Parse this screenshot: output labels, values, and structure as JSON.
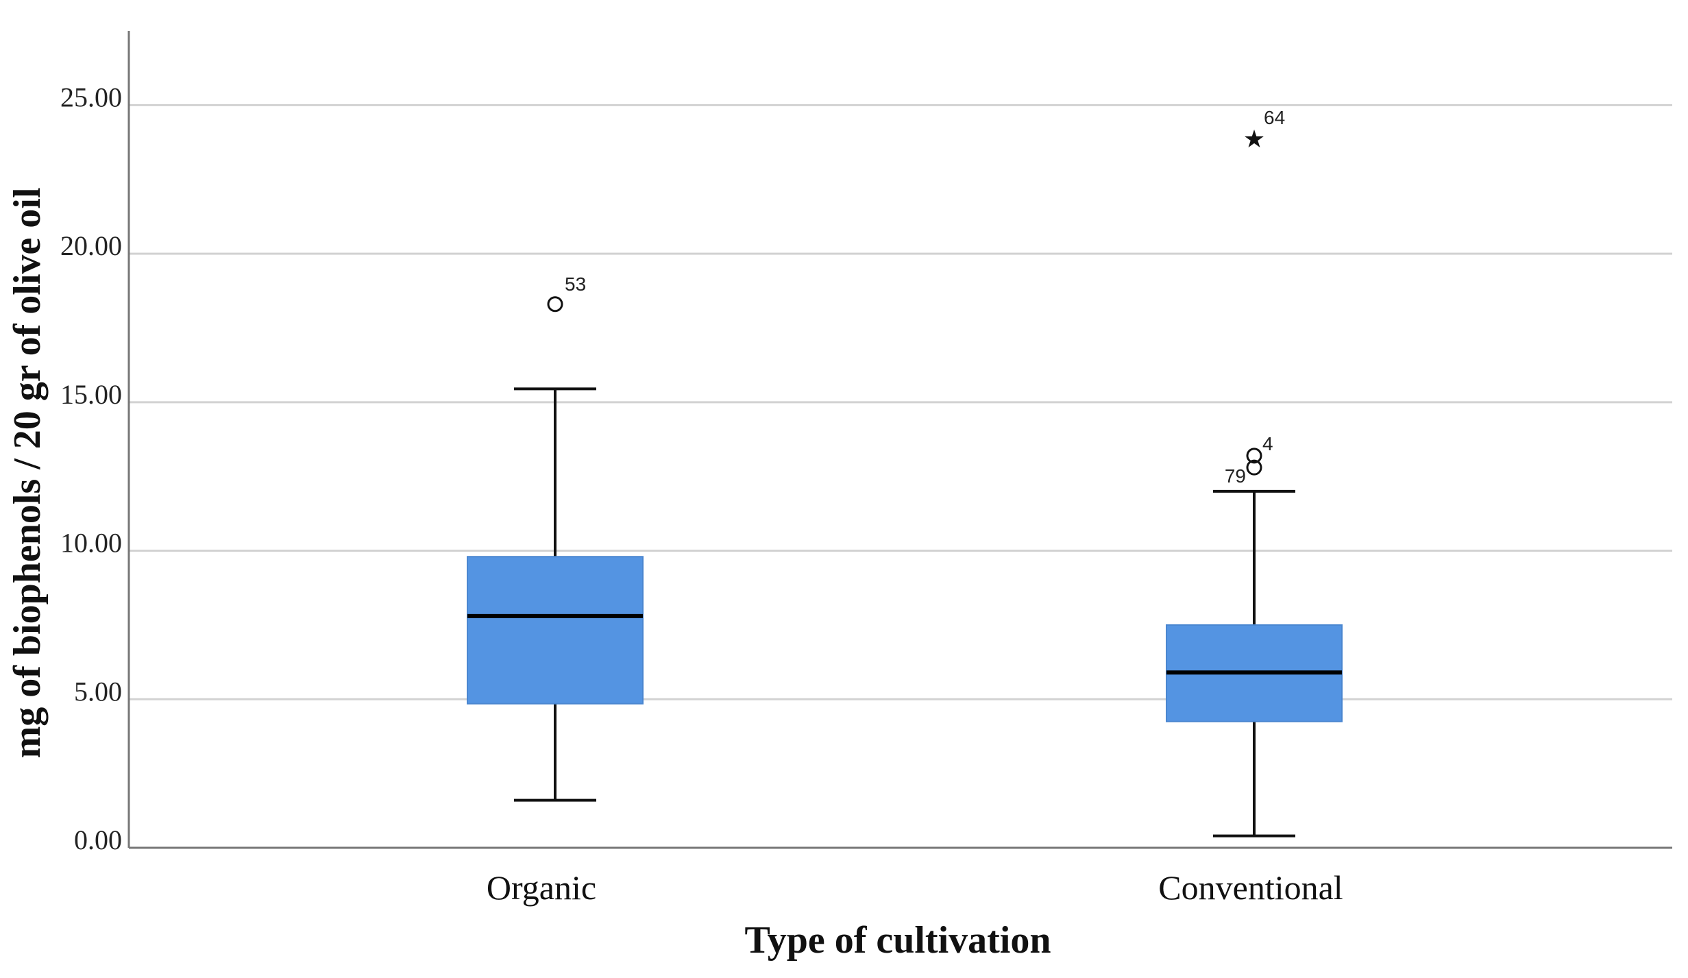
{
  "chart_data": {
    "type": "boxplot",
    "title": "",
    "xlabel": "Type of cultivation",
    "ylabel": "mg of biophenols / 20 gr of olive oil",
    "ylim": [
      0,
      27.5
    ],
    "yticks": [
      0,
      5,
      10,
      15,
      20,
      25
    ],
    "ytick_labels": [
      "0.00",
      "5.00",
      "10.00",
      "15.00",
      "20.00",
      "25.00"
    ],
    "grid": true,
    "box_color": "#5494e2",
    "categories": [
      "Organic",
      "Conventional"
    ],
    "boxes": [
      {
        "name": "Organic",
        "whisker_low": 1.6,
        "q1": 4.85,
        "median": 7.8,
        "q3": 9.8,
        "whisker_high": 15.45,
        "outliers": [
          {
            "id": "53",
            "value": 18.3,
            "marker": "circle"
          }
        ]
      },
      {
        "name": "Conventional",
        "whisker_low": 0.4,
        "q1": 4.25,
        "median": 5.9,
        "q3": 7.5,
        "whisker_high": 12.0,
        "outliers": [
          {
            "id": "79",
            "value": 12.8,
            "marker": "circle"
          },
          {
            "id": "4",
            "value": 13.2,
            "marker": "circle"
          },
          {
            "id": "64",
            "value": 23.9,
            "marker": "star"
          }
        ]
      }
    ]
  }
}
